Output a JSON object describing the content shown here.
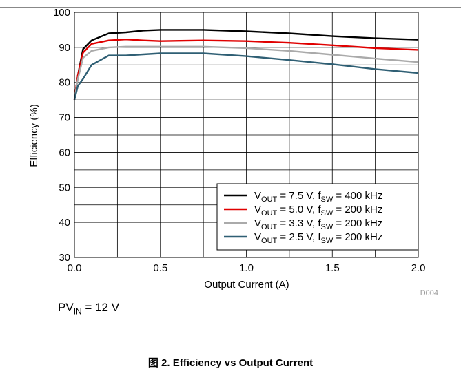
{
  "chart_data": {
    "type": "line",
    "xlabel": "Output Current (A)",
    "ylabel": "Efficiency (%)",
    "xlim": [
      0,
      2.0
    ],
    "ylim": [
      30,
      100
    ],
    "xticks": [
      "0.0",
      "0.5",
      "1.0",
      "1.5",
      "2.0"
    ],
    "yticks": [
      "30",
      "40",
      "50",
      "60",
      "70",
      "80",
      "90",
      "100"
    ],
    "grid": true,
    "legend_position": "bottom-right",
    "series": [
      {
        "name": "VOUT = 7.5 V, fSW = 400 kHz",
        "legend": {
          "v_sub": "OUT",
          "mid": " = 7.5 V, f",
          "f_sub": "SW",
          "end": " = 400 kHz"
        },
        "color": "#000000",
        "x": [
          0.0,
          0.02,
          0.05,
          0.1,
          0.2,
          0.3,
          0.4,
          0.5,
          0.75,
          1.0,
          1.25,
          1.5,
          1.75,
          2.0
        ],
        "y": [
          75,
          82,
          89.5,
          92,
          94,
          94.3,
          94.8,
          95,
          95,
          94.6,
          94,
          93.2,
          92.6,
          92.2
        ]
      },
      {
        "name": "VOUT = 5.0 V, fSW = 200 kHz",
        "legend": {
          "v_sub": "OUT",
          "mid": " = 5.0 V, f",
          "f_sub": "SW",
          "end": " = 200 kHz"
        },
        "color": "#e00000",
        "x": [
          0.0,
          0.02,
          0.05,
          0.1,
          0.2,
          0.3,
          0.4,
          0.5,
          0.75,
          1.0,
          1.25,
          1.5,
          1.75,
          2.0
        ],
        "y": [
          75,
          82,
          88.5,
          91,
          92,
          92.3,
          92,
          91.8,
          92,
          91.8,
          91.3,
          90.6,
          89.8,
          89.3
        ]
      },
      {
        "name": "VOUT = 3.3 V, fSW = 200 kHz",
        "legend": {
          "v_sub": "OUT",
          "mid": " = 3.3 V, f",
          "f_sub": "SW",
          "end": " = 200 kHz"
        },
        "color": "#aaaaaa",
        "x": [
          0.0,
          0.02,
          0.05,
          0.1,
          0.2,
          0.3,
          0.4,
          0.5,
          0.75,
          1.0,
          1.25,
          1.5,
          1.75,
          2.0
        ],
        "y": [
          75,
          81,
          87,
          89,
          90,
          90.2,
          90.2,
          90.2,
          90.2,
          89.8,
          89,
          87.9,
          86.8,
          85.8
        ]
      },
      {
        "name": "VOUT = 2.5 V, fSW = 200 kHz",
        "legend": {
          "v_sub": "OUT",
          "mid": " = 2.5 V, f",
          "f_sub": "SW",
          "end": " = 200 kHz"
        },
        "color": "#2f5f74",
        "x": [
          0.0,
          0.02,
          0.05,
          0.1,
          0.2,
          0.3,
          0.4,
          0.5,
          0.75,
          1.0,
          1.25,
          1.5,
          1.75,
          2.0
        ],
        "y": [
          75,
          79,
          81,
          85,
          87.7,
          87.7,
          88,
          88.3,
          88.3,
          87.5,
          86.4,
          85.2,
          83.8,
          82.7
        ]
      }
    ],
    "figure_code": "D004"
  },
  "note": {
    "prefix": "PV",
    "sub": "IN",
    "suffix": " = 12 V"
  },
  "caption": "图 2. Efficiency vs Output Current"
}
